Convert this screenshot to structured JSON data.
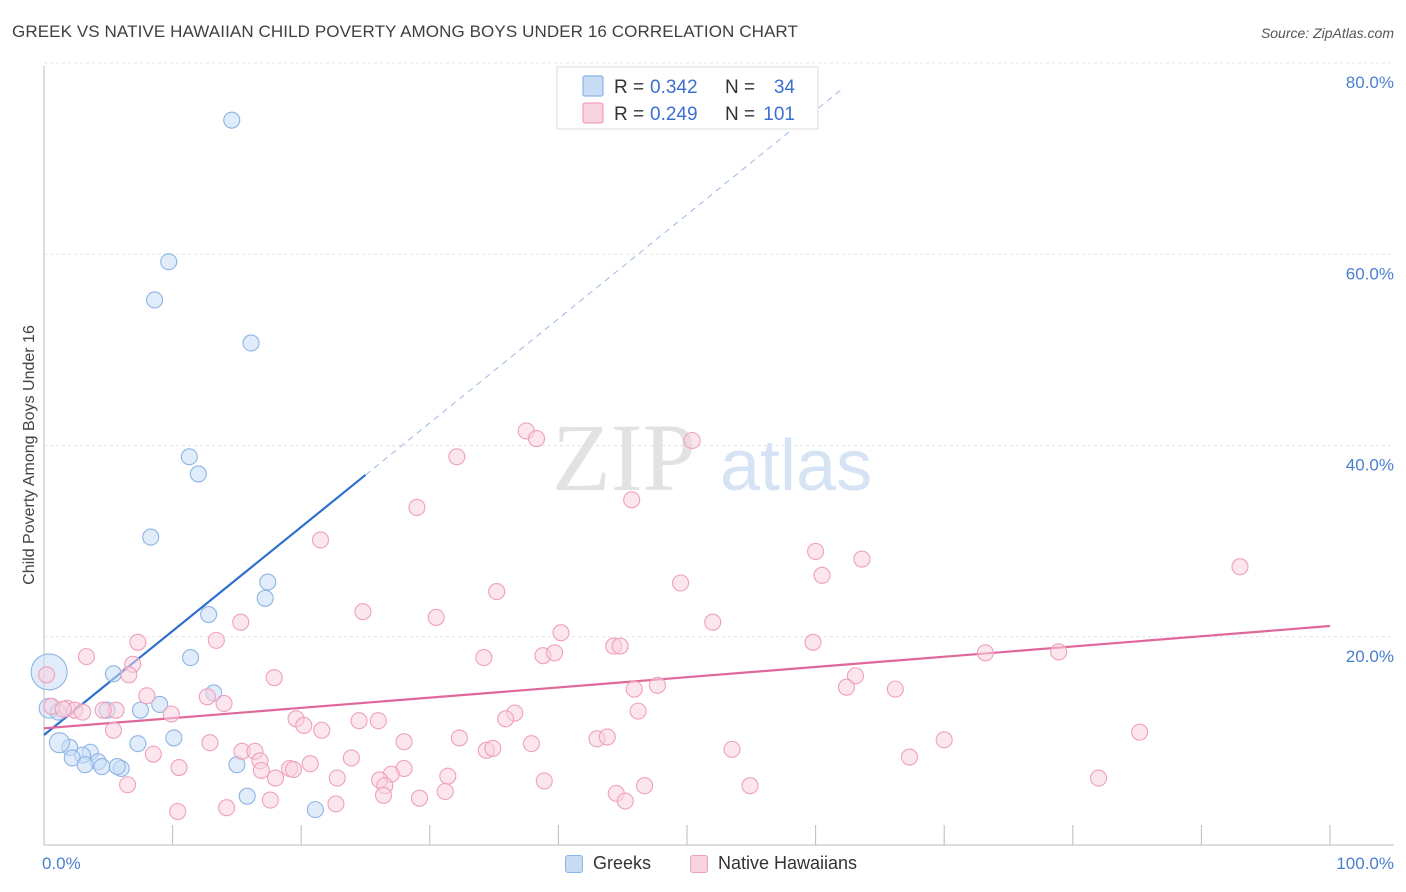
{
  "chart_data": {
    "type": "scatter",
    "title": "GREEK VS NATIVE HAWAIIAN CHILD POVERTY AMONG BOYS UNDER 16 CORRELATION CHART",
    "source": "Source: ZipAtlas.com",
    "ylabel": "Child Poverty Among Boys Under 16",
    "xlim": [
      0,
      100
    ],
    "ylim": [
      0,
      80
    ],
    "y_ticks": [
      "80.0%",
      "60.0%",
      "40.0%",
      "20.0%"
    ],
    "y_tick_values": [
      80,
      60,
      40,
      20
    ],
    "x_tick_labels": [
      "0.0%",
      "100.0%"
    ],
    "watermark": {
      "zip": "ZIP",
      "atlas": "atlas"
    },
    "legend": {
      "r_label": "R =",
      "n_label": "N =",
      "rows": [
        {
          "r": "0.342",
          "n": "34"
        },
        {
          "r": "0.249",
          "n": "101"
        }
      ]
    },
    "series": [
      {
        "name": "Greeks",
        "color": "#8db4e6",
        "fill": "#c9dcf5",
        "line_color": "#2f6fd0",
        "trend": {
          "x0": 0,
          "y0": 11.5,
          "x1": 25,
          "y1": 38.7,
          "dash_to_x": 62,
          "dash_to_y": 79.0
        },
        "points": [
          [
            14.6,
            75.8
          ],
          [
            9.7,
            61.0
          ],
          [
            8.6,
            57.0
          ],
          [
            16.1,
            52.5
          ],
          [
            11.3,
            40.6
          ],
          [
            12.0,
            38.8
          ],
          [
            8.3,
            32.2
          ],
          [
            17.4,
            27.5
          ],
          [
            17.2,
            25.8
          ],
          [
            12.8,
            24.1
          ],
          [
            11.4,
            19.6
          ],
          [
            0.4,
            18.1
          ],
          [
            5.4,
            17.9
          ],
          [
            13.2,
            15.9
          ],
          [
            9.0,
            14.7
          ],
          [
            7.5,
            14.1
          ],
          [
            0.4,
            14.3
          ],
          [
            1.1,
            13.9
          ],
          [
            4.9,
            14.1
          ],
          [
            10.1,
            11.2
          ],
          [
            7.3,
            10.6
          ],
          [
            2.0,
            10.2
          ],
          [
            1.2,
            10.7
          ],
          [
            3.6,
            9.7
          ],
          [
            3.0,
            9.4
          ],
          [
            2.2,
            9.1
          ],
          [
            4.2,
            8.7
          ],
          [
            3.2,
            8.4
          ],
          [
            4.5,
            8.2
          ],
          [
            15.0,
            8.4
          ],
          [
            6.0,
            8.0
          ],
          [
            5.7,
            8.2
          ],
          [
            15.8,
            5.1
          ],
          [
            21.1,
            3.7
          ]
        ],
        "sizes": [
          8,
          8,
          8,
          8,
          8,
          8,
          8,
          8,
          8,
          8,
          8,
          18,
          8,
          8,
          8,
          8,
          10,
          8,
          8,
          8,
          8,
          8,
          10,
          8,
          8,
          8,
          8,
          8,
          8,
          8,
          8,
          8,
          8,
          8
        ]
      },
      {
        "name": "Native Hawaiians",
        "color": "#f0a0bc",
        "fill": "#f9d2df",
        "line_color": "#e0679a",
        "trend": {
          "x0": 0,
          "y0": 12.2,
          "x1": 100,
          "y1": 22.9
        },
        "points": [
          [
            0.2,
            17.8
          ],
          [
            37.5,
            43.3
          ],
          [
            38.3,
            42.5
          ],
          [
            50.4,
            42.3
          ],
          [
            32.1,
            40.6
          ],
          [
            29.0,
            35.3
          ],
          [
            45.7,
            36.1
          ],
          [
            21.5,
            31.9
          ],
          [
            60.0,
            30.7
          ],
          [
            63.6,
            29.9
          ],
          [
            60.5,
            28.2
          ],
          [
            93.0,
            29.1
          ],
          [
            49.5,
            27.4
          ],
          [
            35.2,
            26.5
          ],
          [
            24.8,
            24.4
          ],
          [
            30.5,
            23.8
          ],
          [
            52.0,
            23.3
          ],
          [
            15.3,
            23.3
          ],
          [
            40.2,
            22.2
          ],
          [
            13.4,
            21.4
          ],
          [
            7.3,
            21.2
          ],
          [
            44.3,
            20.8
          ],
          [
            44.8,
            20.8
          ],
          [
            59.8,
            21.2
          ],
          [
            73.2,
            20.1
          ],
          [
            78.9,
            20.2
          ],
          [
            3.3,
            19.7
          ],
          [
            34.2,
            19.6
          ],
          [
            38.8,
            19.8
          ],
          [
            39.7,
            20.1
          ],
          [
            6.9,
            18.9
          ],
          [
            6.6,
            17.8
          ],
          [
            17.9,
            17.5
          ],
          [
            63.1,
            17.7
          ],
          [
            47.7,
            16.7
          ],
          [
            45.9,
            16.3
          ],
          [
            62.4,
            16.5
          ],
          [
            66.2,
            16.3
          ],
          [
            8.0,
            15.6
          ],
          [
            12.7,
            15.5
          ],
          [
            14.0,
            14.8
          ],
          [
            1.8,
            14.3
          ],
          [
            2.4,
            14.1
          ],
          [
            5.6,
            14.1
          ],
          [
            9.9,
            13.7
          ],
          [
            36.6,
            13.8
          ],
          [
            35.9,
            13.2
          ],
          [
            46.2,
            14.0
          ],
          [
            19.6,
            13.2
          ],
          [
            24.5,
            13.0
          ],
          [
            26.0,
            13.0
          ],
          [
            20.2,
            12.5
          ],
          [
            21.6,
            12.0
          ],
          [
            5.4,
            12.0
          ],
          [
            0.6,
            14.5
          ],
          [
            1.5,
            14.2
          ],
          [
            3.0,
            13.9
          ],
          [
            4.6,
            14.1
          ],
          [
            85.2,
            11.8
          ],
          [
            32.3,
            11.2
          ],
          [
            43.0,
            11.1
          ],
          [
            43.8,
            11.3
          ],
          [
            70.0,
            11.0
          ],
          [
            12.9,
            10.7
          ],
          [
            28.0,
            10.8
          ],
          [
            37.9,
            10.6
          ],
          [
            34.4,
            9.9
          ],
          [
            34.9,
            10.1
          ],
          [
            53.5,
            10.0
          ],
          [
            15.4,
            9.8
          ],
          [
            16.4,
            9.8
          ],
          [
            8.5,
            9.5
          ],
          [
            23.9,
            9.1
          ],
          [
            67.3,
            9.2
          ],
          [
            16.8,
            8.8
          ],
          [
            20.7,
            8.5
          ],
          [
            19.1,
            8.0
          ],
          [
            19.4,
            7.9
          ],
          [
            28.0,
            8.0
          ],
          [
            10.5,
            8.1
          ],
          [
            16.9,
            7.8
          ],
          [
            22.8,
            7.0
          ],
          [
            27.0,
            7.4
          ],
          [
            18.0,
            7.0
          ],
          [
            26.1,
            6.8
          ],
          [
            31.4,
            7.2
          ],
          [
            82.0,
            7.0
          ],
          [
            26.5,
            6.2
          ],
          [
            38.9,
            6.7
          ],
          [
            6.5,
            6.3
          ],
          [
            46.7,
            6.2
          ],
          [
            54.9,
            6.2
          ],
          [
            26.4,
            5.2
          ],
          [
            31.2,
            5.6
          ],
          [
            44.5,
            5.4
          ],
          [
            29.2,
            4.9
          ],
          [
            17.6,
            4.7
          ],
          [
            45.2,
            4.6
          ],
          [
            22.7,
            4.3
          ],
          [
            14.2,
            3.9
          ],
          [
            10.4,
            3.5
          ]
        ]
      }
    ]
  },
  "bottom_legend": {
    "items": [
      "Greeks",
      "Native Hawaiians"
    ]
  }
}
